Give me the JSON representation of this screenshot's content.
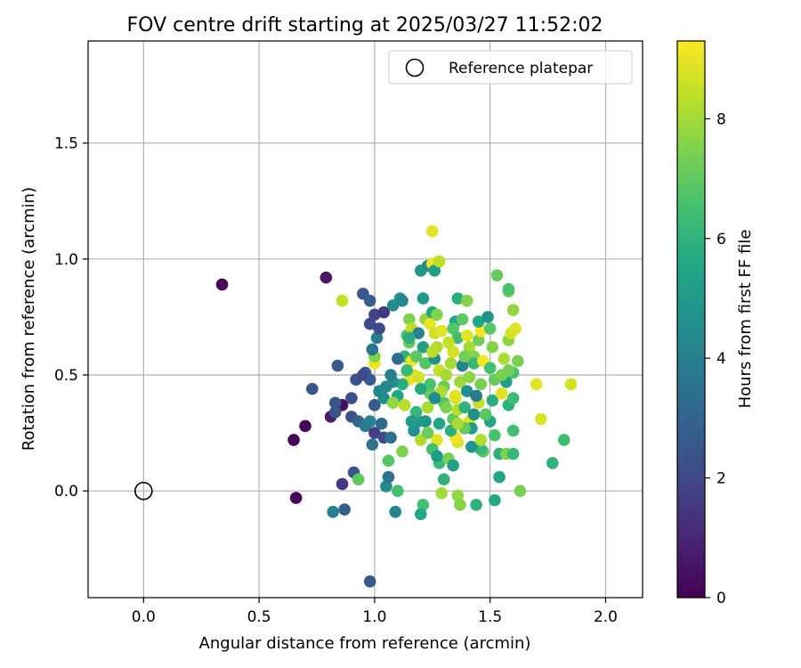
{
  "chart_data": {
    "type": "scatter",
    "title": "FOV centre drift starting at 2025/03/27 11:52:02",
    "xlabel": "Angular distance from reference (arcmin)",
    "ylabel": "Rotation from reference (arcmin)",
    "xlim": [
      -0.24,
      2.16
    ],
    "ylim": [
      -0.46,
      1.94
    ],
    "xticks": [
      0.0,
      0.5,
      1.0,
      1.5,
      2.0
    ],
    "xtick_labels": [
      "0.0",
      "0.5",
      "1.0",
      "1.5",
      "2.0"
    ],
    "yticks": [
      0.0,
      0.5,
      1.0,
      1.5
    ],
    "ytick_labels": [
      "0.0",
      "0.5",
      "1.0",
      "1.5"
    ],
    "grid": true,
    "legend_position": "top-right",
    "legend": [
      {
        "label": "Reference platepar",
        "marker": "hollow-circle",
        "color": "#000000"
      }
    ],
    "reference_point": {
      "x": 0.0,
      "y": 0.0
    },
    "colorbar": {
      "label": "Hours from first FF file",
      "colormap": "viridis",
      "range": [
        0,
        9.3
      ],
      "ticks": [
        0,
        2,
        4,
        6,
        8
      ],
      "tick_labels": [
        "0",
        "2",
        "4",
        "6",
        "8"
      ]
    },
    "points": [
      [
        0.34,
        0.89,
        0.1
      ],
      [
        0.79,
        0.92,
        0.6
      ],
      [
        0.65,
        0.22,
        0.1
      ],
      [
        0.7,
        0.28,
        0.2
      ],
      [
        0.66,
        -0.03,
        0.1
      ],
      [
        0.73,
        0.44,
        2.5
      ],
      [
        0.81,
        0.32,
        0.7
      ],
      [
        0.86,
        0.37,
        0.4
      ],
      [
        0.87,
        -0.08,
        2.8
      ],
      [
        0.82,
        -0.09,
        4.0
      ],
      [
        0.91,
        0.08,
        2.5
      ],
      [
        0.86,
        0.03,
        1.5
      ],
      [
        0.98,
        -0.39,
        2.6
      ],
      [
        0.84,
        0.54,
        2.7
      ],
      [
        0.83,
        0.38,
        2.5
      ],
      [
        0.83,
        0.34,
        2.4
      ],
      [
        0.9,
        0.4,
        2.3
      ],
      [
        0.9,
        0.32,
        2.2
      ],
      [
        0.93,
        0.3,
        3.0
      ],
      [
        0.95,
        0.85,
        2.6
      ],
      [
        0.98,
        0.82,
        2.8
      ],
      [
        0.98,
        0.72,
        2.1
      ],
      [
        1.0,
        0.76,
        1.9
      ],
      [
        0.86,
        0.82,
        8.5
      ],
      [
        0.93,
        0.05,
        7.0
      ],
      [
        0.96,
        0.28,
        3.8
      ],
      [
        0.98,
        0.3,
        4.0
      ],
      [
        0.99,
        0.2,
        3.5
      ],
      [
        1.0,
        0.25,
        1.8
      ],
      [
        1.0,
        0.37,
        2.6
      ],
      [
        1.03,
        0.29,
        3.2
      ],
      [
        1.04,
        0.23,
        2.0
      ],
      [
        1.05,
        0.02,
        4.5
      ],
      [
        1.06,
        0.06,
        3.5
      ],
      [
        1.07,
        0.23,
        3.4
      ],
      [
        1.09,
        -0.09,
        4.2
      ],
      [
        1.1,
        0.0,
        6.5
      ],
      [
        1.06,
        0.13,
        6.8
      ],
      [
        1.04,
        0.4,
        4.6
      ],
      [
        1.02,
        0.43,
        4.2
      ],
      [
        0.98,
        0.48,
        2.7
      ],
      [
        0.96,
        0.51,
        2.9
      ],
      [
        0.92,
        0.48,
        2.3
      ],
      [
        0.95,
        0.5,
        2.0
      ],
      [
        1.0,
        0.55,
        9.1
      ],
      [
        1.0,
        0.58,
        7.5
      ],
      [
        0.99,
        0.61,
        3.6
      ],
      [
        1.01,
        0.66,
        3.9
      ],
      [
        1.02,
        0.7,
        2.1
      ],
      [
        1.04,
        0.77,
        1.6
      ],
      [
        1.08,
        0.8,
        4.5
      ],
      [
        1.11,
        0.83,
        5.0
      ],
      [
        1.12,
        0.82,
        4.2
      ],
      [
        1.14,
        0.67,
        6.6
      ],
      [
        1.15,
        0.74,
        7.5
      ],
      [
        1.16,
        0.7,
        8.4
      ],
      [
        1.15,
        0.64,
        7.1
      ],
      [
        1.13,
        0.58,
        6.0
      ],
      [
        1.16,
        0.56,
        9.1
      ],
      [
        1.17,
        0.5,
        8.8
      ],
      [
        1.15,
        0.48,
        9.0
      ],
      [
        1.12,
        0.46,
        5.8
      ],
      [
        1.1,
        0.41,
        5.5
      ],
      [
        1.08,
        0.38,
        7.8
      ],
      [
        1.12,
        0.17,
        7.5
      ],
      [
        1.17,
        0.26,
        4.6
      ],
      [
        1.19,
        0.3,
        4.8
      ],
      [
        1.2,
        0.22,
        8.2
      ],
      [
        1.21,
        -0.06,
        6.5
      ],
      [
        1.2,
        -0.1,
        5.6
      ],
      [
        1.23,
        0.36,
        8.1
      ],
      [
        1.24,
        0.42,
        7.2
      ],
      [
        1.22,
        0.55,
        6.8
      ],
      [
        1.21,
        0.62,
        5.2
      ],
      [
        1.19,
        0.68,
        4.0
      ],
      [
        1.22,
        0.74,
        7.8
      ],
      [
        1.24,
        0.72,
        9.0
      ],
      [
        1.25,
        0.77,
        5.6
      ],
      [
        1.21,
        0.83,
        5.0
      ],
      [
        1.2,
        0.95,
        4.9
      ],
      [
        1.23,
        0.97,
        4.5
      ],
      [
        1.25,
        0.98,
        9.1
      ],
      [
        1.26,
        0.95,
        5.2
      ],
      [
        1.25,
        1.12,
        8.9
      ],
      [
        1.28,
        0.99,
        8.4
      ],
      [
        1.27,
        0.76,
        7.5
      ],
      [
        1.26,
        0.68,
        8.6
      ],
      [
        1.29,
        0.69,
        8.9
      ],
      [
        1.27,
        0.62,
        8.2
      ],
      [
        1.26,
        0.57,
        4.7
      ],
      [
        1.28,
        0.52,
        8.5
      ],
      [
        1.31,
        0.5,
        8.0
      ],
      [
        1.3,
        0.45,
        7.2
      ],
      [
        1.3,
        0.38,
        6.8
      ],
      [
        1.28,
        0.29,
        5.4
      ],
      [
        1.27,
        0.22,
        8.9
      ],
      [
        1.25,
        0.18,
        6.5
      ],
      [
        1.28,
        0.12,
        6.3
      ],
      [
        1.3,
        0.05,
        6.0
      ],
      [
        1.29,
        -0.01,
        8.0
      ],
      [
        1.32,
        0.14,
        7.4
      ],
      [
        1.34,
        0.11,
        5.2
      ],
      [
        1.36,
        -0.02,
        7.8
      ],
      [
        1.37,
        -0.06,
        7.6
      ],
      [
        1.36,
        0.21,
        8.8
      ],
      [
        1.35,
        0.23,
        9.1
      ],
      [
        1.34,
        0.31,
        7.0
      ],
      [
        1.36,
        0.35,
        8.3
      ],
      [
        1.35,
        0.4,
        8.6
      ],
      [
        1.37,
        0.47,
        7.9
      ],
      [
        1.33,
        0.55,
        8.1
      ],
      [
        1.34,
        0.6,
        8.7
      ],
      [
        1.36,
        0.66,
        6.4
      ],
      [
        1.35,
        0.73,
        5.4
      ],
      [
        1.36,
        0.83,
        5.8
      ],
      [
        1.4,
        0.82,
        7.6
      ],
      [
        1.38,
        0.74,
        7.0
      ],
      [
        1.4,
        0.67,
        8.9
      ],
      [
        1.41,
        0.62,
        8.0
      ],
      [
        1.4,
        0.57,
        9.1
      ],
      [
        1.43,
        0.58,
        7.6
      ],
      [
        1.43,
        0.55,
        6.2
      ],
      [
        1.41,
        0.49,
        7.7
      ],
      [
        1.4,
        0.43,
        4.6
      ],
      [
        1.39,
        0.36,
        6.0
      ],
      [
        1.41,
        0.3,
        8.8
      ],
      [
        1.42,
        0.27,
        5.0
      ],
      [
        1.43,
        0.33,
        4.6
      ],
      [
        1.45,
        0.38,
        8.5
      ],
      [
        1.46,
        0.46,
        7.4
      ],
      [
        1.47,
        0.56,
        9.1
      ],
      [
        1.45,
        0.65,
        7.3
      ],
      [
        1.46,
        0.69,
        9.2
      ],
      [
        1.45,
        0.73,
        5.6
      ],
      [
        1.49,
        0.75,
        4.8
      ],
      [
        1.5,
        0.7,
        6.8
      ],
      [
        1.51,
        0.62,
        7.6
      ],
      [
        1.5,
        0.53,
        6.5
      ],
      [
        1.52,
        0.48,
        7.1
      ],
      [
        1.51,
        0.39,
        5.8
      ],
      [
        1.5,
        0.3,
        5.5
      ],
      [
        1.52,
        0.24,
        6.6
      ],
      [
        1.47,
        0.17,
        7.0
      ],
      [
        1.46,
        0.18,
        6.2
      ],
      [
        1.44,
        -0.06,
        6.0
      ],
      [
        1.52,
        -0.04,
        5.6
      ],
      [
        1.54,
        0.06,
        5.4
      ],
      [
        1.54,
        0.16,
        5.9
      ],
      [
        1.57,
        0.16,
        7.5
      ],
      [
        1.6,
        0.16,
        6.2
      ],
      [
        1.6,
        0.26,
        6.5
      ],
      [
        1.58,
        0.37,
        5.9
      ],
      [
        1.6,
        0.4,
        6.4
      ],
      [
        1.57,
        0.47,
        5.2
      ],
      [
        1.6,
        0.51,
        6.6
      ],
      [
        1.62,
        0.56,
        7.4
      ],
      [
        1.58,
        0.52,
        7.3
      ],
      [
        1.55,
        0.42,
        8.9
      ],
      [
        1.55,
        0.5,
        7.4
      ],
      [
        1.56,
        0.57,
        8.1
      ],
      [
        1.58,
        0.65,
        7.7
      ],
      [
        1.59,
        0.68,
        8.7
      ],
      [
        1.61,
        0.7,
        8.8
      ],
      [
        1.6,
        0.78,
        7.8
      ],
      [
        1.58,
        0.86,
        7.3
      ],
      [
        1.58,
        0.87,
        6.6
      ],
      [
        1.53,
        0.93,
        7.1
      ],
      [
        1.63,
        0.0,
        7.4
      ],
      [
        1.72,
        0.31,
        8.8
      ],
      [
        1.7,
        0.46,
        8.9
      ],
      [
        1.77,
        0.12,
        6.0
      ],
      [
        1.82,
        0.22,
        6.4
      ],
      [
        1.85,
        0.46,
        8.7
      ],
      [
        1.19,
        0.49,
        8.7
      ],
      [
        1.14,
        0.52,
        6.2
      ],
      [
        1.08,
        0.47,
        4.7
      ],
      [
        1.1,
        0.57,
        3.2
      ],
      [
        1.07,
        0.5,
        3.9
      ],
      [
        1.05,
        0.45,
        4.3
      ],
      [
        1.13,
        0.37,
        8.3
      ],
      [
        1.18,
        0.34,
        6.1
      ],
      [
        1.16,
        0.3,
        5.1
      ],
      [
        1.22,
        0.3,
        4.9
      ],
      [
        1.23,
        0.25,
        7.2
      ],
      [
        1.24,
        0.46,
        6.6
      ],
      [
        1.32,
        0.64,
        8.5
      ],
      [
        1.34,
        0.7,
        6.8
      ],
      [
        1.38,
        0.54,
        4.2
      ],
      [
        1.39,
        0.58,
        7.3
      ],
      [
        1.44,
        0.41,
        3.8
      ],
      [
        1.48,
        0.33,
        6.9
      ],
      [
        1.42,
        0.19,
        4.8
      ],
      [
        1.33,
        0.26,
        5.9
      ],
      [
        1.31,
        0.36,
        7.5
      ],
      [
        1.29,
        0.43,
        8.1
      ],
      [
        1.26,
        0.4,
        4.4
      ],
      [
        1.2,
        0.44,
        5.7
      ],
      [
        1.18,
        0.58,
        6.9
      ],
      [
        1.15,
        0.66,
        5.8
      ],
      [
        1.46,
        0.22,
        8.2
      ],
      [
        1.39,
        0.27,
        7.1
      ],
      [
        1.36,
        0.29,
        8.1
      ],
      [
        1.27,
        0.15,
        5.0
      ],
      [
        1.25,
        0.6,
        8.3
      ],
      [
        1.35,
        0.41,
        8.9
      ]
    ]
  }
}
